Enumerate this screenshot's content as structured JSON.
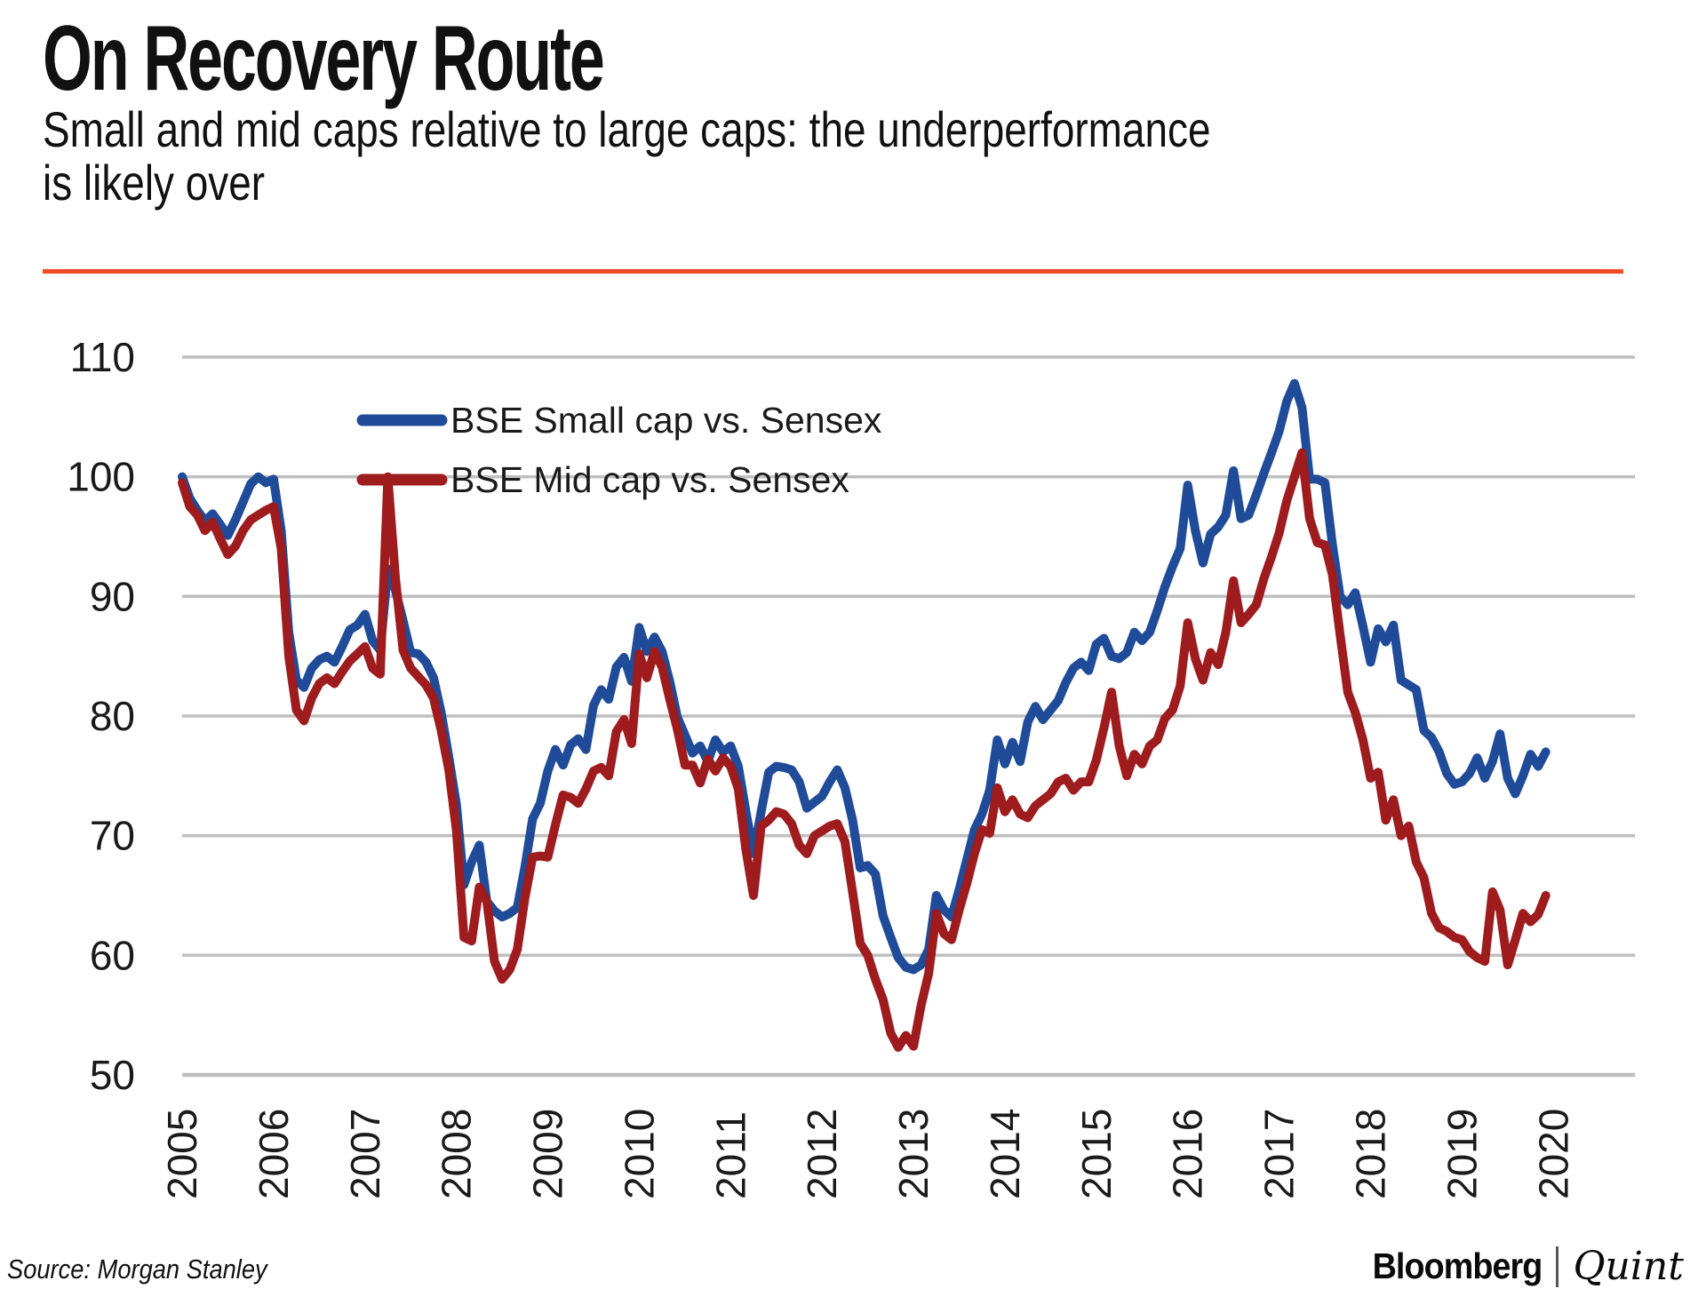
{
  "header": {
    "title": "On Recovery Route",
    "subtitle_line1": "Small and mid caps relative to large caps: the underperformance",
    "subtitle_line2": "is likely over"
  },
  "colors": {
    "accent_rule": "#F04B23",
    "gridline": "#BFBFBF",
    "axis_text": "#1A1A1A",
    "legend_text": "#1A1A1A"
  },
  "chart_data": {
    "type": "line",
    "title": "Small and mid caps relative to large caps (indexed)",
    "xlabel": "",
    "ylabel": "",
    "grid": true,
    "legend_position": "inside-top-left",
    "ylim": [
      50,
      110
    ],
    "y_ticks": [
      "110",
      "100",
      "90",
      "80",
      "70",
      "60",
      "50"
    ],
    "y_tick_values": [
      110,
      100,
      90,
      80,
      70,
      60,
      50
    ],
    "x_tick_labels": [
      "2005",
      "2006",
      "2007",
      "2008",
      "2009",
      "2010",
      "2011",
      "2012",
      "2013",
      "2014",
      "2015",
      "2016",
      "2017",
      "2018",
      "2019",
      "2020"
    ],
    "x_months_per_tick": 12,
    "x_axis_total_months": 190.7,
    "series": [
      {
        "name": "BSE Small cap vs. Sensex",
        "color": "#1F4B99",
        "values": [
          100.0,
          98.2,
          97.2,
          96.3,
          96.9,
          96.0,
          95.1,
          96.4,
          97.9,
          99.4,
          100.0,
          99.5,
          99.8,
          95.5,
          87.0,
          83.0,
          82.4,
          84.0,
          84.7,
          85.0,
          84.5,
          85.8,
          87.2,
          87.6,
          88.5,
          86.3,
          85.5,
          92.3,
          90.5,
          88.0,
          85.3,
          85.2,
          84.5,
          83.2,
          80.3,
          76.6,
          72.6,
          65.9,
          67.8,
          69.2,
          64.5,
          63.7,
          63.2,
          63.5,
          64.0,
          67.4,
          71.4,
          72.7,
          75.4,
          77.2,
          75.9,
          77.6,
          78.1,
          77.2,
          80.9,
          82.2,
          81.4,
          84.1,
          84.9,
          82.9,
          87.4,
          85.4,
          86.6,
          85.4,
          82.9,
          79.9,
          78.4,
          76.9,
          77.5,
          76.2,
          78.0,
          77.0,
          77.5,
          75.8,
          72.0,
          68.5,
          72.0,
          75.3,
          75.8,
          75.7,
          75.5,
          74.5,
          72.3,
          72.8,
          73.3,
          74.5,
          75.5,
          74.0,
          71.3,
          67.3,
          67.5,
          66.8,
          63.3,
          61.5,
          59.8,
          59.0,
          58.8,
          59.2,
          60.5,
          65.0,
          63.8,
          63.2,
          65.5,
          68.0,
          70.5,
          71.8,
          73.8,
          78.0,
          76.0,
          77.8,
          76.2,
          79.5,
          80.8,
          79.7,
          80.5,
          81.3,
          82.8,
          84.0,
          84.5,
          83.8,
          86.0,
          86.5,
          85.0,
          84.8,
          85.3,
          87.0,
          86.3,
          87.0,
          88.8,
          90.8,
          92.5,
          94.0,
          99.3,
          95.5,
          92.8,
          95.2,
          95.8,
          96.8,
          100.5,
          96.5,
          96.8,
          98.5,
          100.3,
          102.0,
          103.8,
          106.3,
          107.8,
          105.8,
          99.8,
          99.8,
          99.5,
          94.3,
          90.0,
          89.3,
          90.3,
          87.5,
          84.5,
          87.3,
          86.2,
          87.6,
          83.0,
          82.6,
          82.2,
          78.8,
          78.2,
          77.0,
          75.2,
          74.3,
          74.5,
          75.2,
          76.5,
          74.8,
          76.2,
          78.5,
          74.8,
          73.5,
          75.0,
          76.8,
          75.8,
          77.0
        ]
      },
      {
        "name": "BSE Mid cap vs. Sensex",
        "color": "#9E1B1E",
        "values": [
          99.5,
          97.5,
          96.8,
          95.5,
          96.2,
          94.8,
          93.5,
          94.2,
          95.5,
          96.4,
          96.8,
          97.2,
          97.5,
          94.0,
          85.0,
          80.5,
          79.6,
          81.5,
          82.7,
          83.2,
          82.7,
          83.7,
          84.6,
          85.2,
          85.8,
          84.0,
          83.5,
          100.0,
          91.5,
          85.5,
          84.0,
          83.3,
          82.6,
          81.5,
          78.8,
          75.5,
          70.4,
          61.5,
          61.2,
          65.7,
          64.5,
          59.5,
          58.0,
          58.8,
          60.5,
          64.8,
          68.2,
          68.3,
          68.2,
          70.9,
          73.4,
          73.2,
          72.7,
          73.9,
          75.4,
          75.7,
          75.0,
          78.7,
          79.7,
          77.7,
          85.2,
          83.2,
          85.4,
          84.1,
          81.4,
          78.9,
          75.9,
          75.9,
          74.4,
          76.4,
          75.4,
          76.5,
          75.8,
          73.9,
          68.8,
          65.0,
          70.8,
          71.3,
          72.0,
          71.8,
          71.0,
          69.2,
          68.5,
          70.0,
          70.4,
          70.8,
          71.0,
          69.5,
          65.3,
          61.0,
          60.0,
          58.0,
          56.3,
          53.5,
          52.3,
          53.3,
          52.4,
          55.8,
          58.5,
          63.5,
          61.8,
          61.3,
          63.8,
          66.0,
          68.5,
          70.5,
          70.2,
          74.0,
          72.0,
          73.0,
          71.8,
          71.5,
          72.5,
          73.0,
          73.5,
          74.5,
          74.8,
          73.8,
          74.5,
          74.5,
          76.3,
          79.0,
          82.0,
          77.5,
          75.0,
          76.8,
          76.0,
          77.5,
          78.0,
          79.8,
          80.5,
          82.5,
          87.8,
          84.8,
          83.0,
          85.3,
          84.3,
          87.0,
          91.3,
          87.8,
          88.5,
          89.3,
          91.5,
          93.3,
          95.3,
          98.0,
          100.0,
          102.0,
          96.5,
          94.5,
          94.3,
          91.8,
          86.8,
          82.0,
          80.3,
          78.0,
          74.8,
          75.3,
          71.3,
          73.0,
          70.0,
          70.8,
          67.8,
          66.5,
          63.5,
          62.3,
          62.0,
          61.5,
          61.3,
          60.3,
          59.8,
          59.5,
          65.3,
          63.8,
          59.2,
          61.3,
          63.5,
          62.8,
          63.4,
          65.0
        ]
      }
    ]
  },
  "footer": {
    "source": "Source: Morgan Stanley",
    "brand_part1": "Bloomberg",
    "brand_part2": "Quint"
  }
}
